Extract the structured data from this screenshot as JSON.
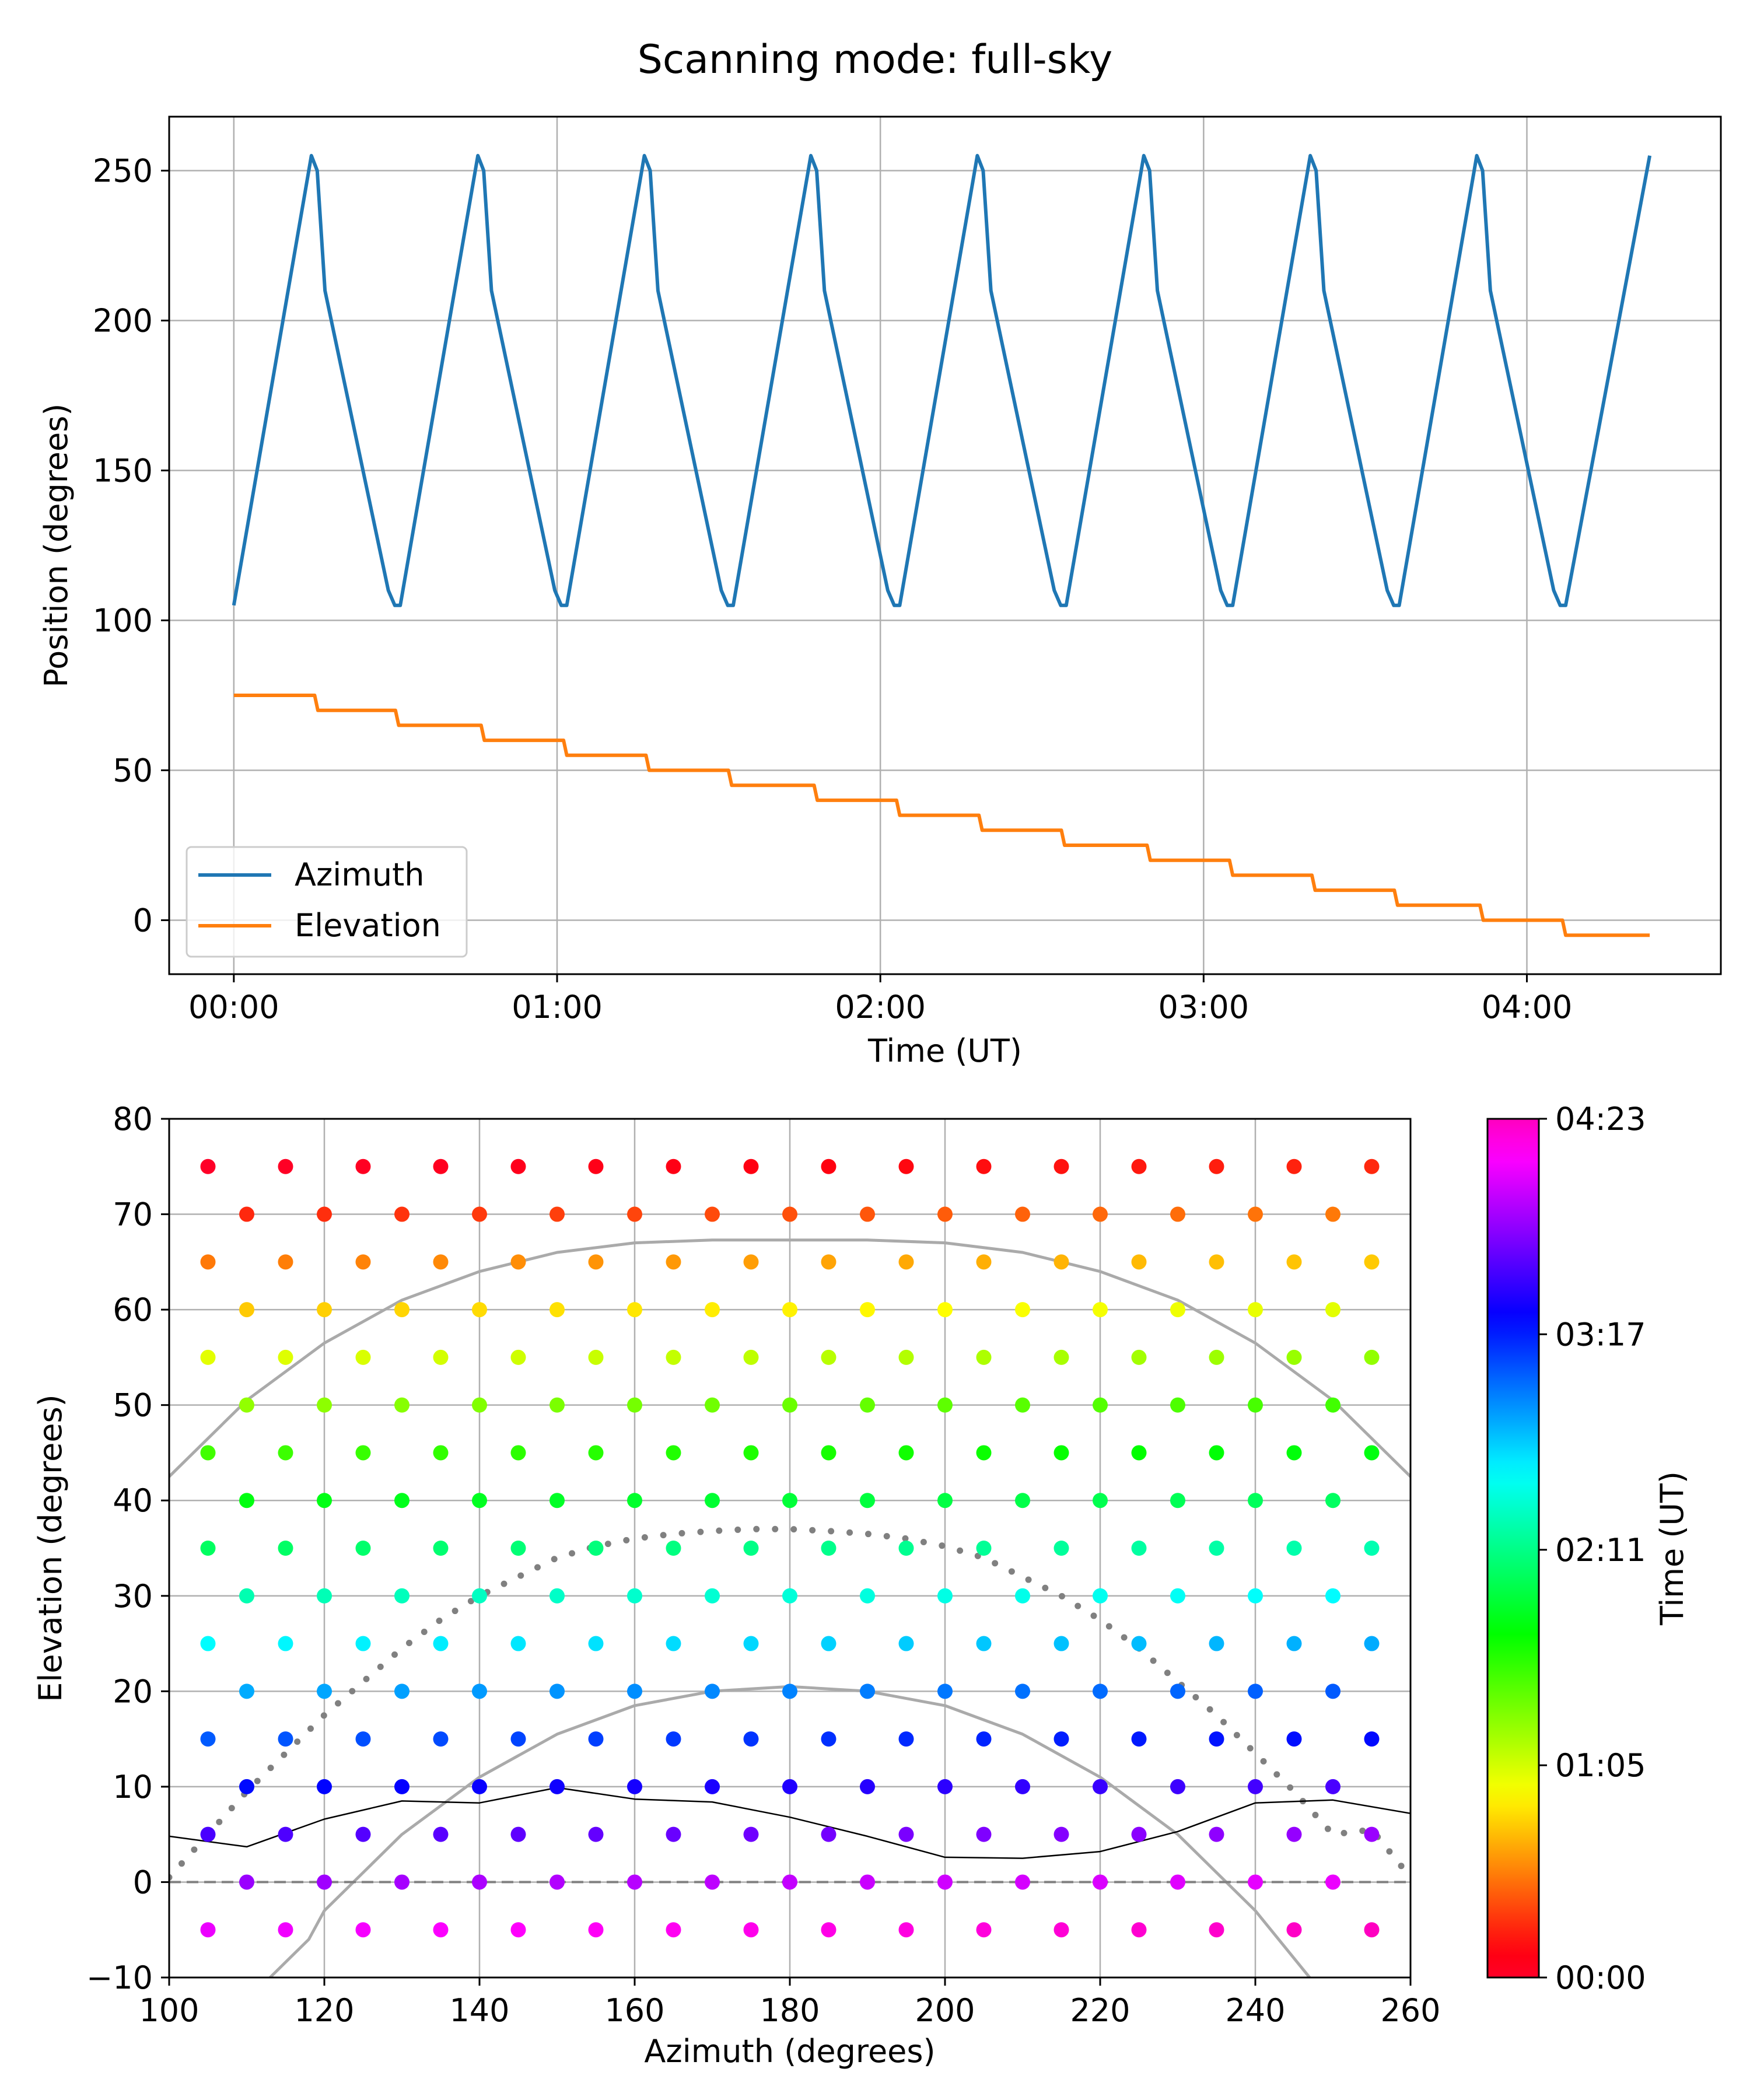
{
  "figure": {
    "title": "Scanning mode: full-sky"
  },
  "chart_data": [
    {
      "type": "line",
      "title": "Scanning mode: full-sky",
      "xlabel": "Time (UT)",
      "ylabel": "Position (degrees)",
      "xlim": [
        -0.2,
        4.6
      ],
      "ylim": [
        -18,
        268
      ],
      "xticks": [
        0,
        1,
        2,
        3,
        4
      ],
      "xtick_labels": [
        "00:00",
        "01:00",
        "02:00",
        "03:00",
        "04:00"
      ],
      "yticks": [
        0,
        50,
        100,
        150,
        200,
        250
      ],
      "ytick_labels": [
        "0",
        "50",
        "100",
        "150",
        "200",
        "250"
      ],
      "grid": true,
      "legend_position": "lower-left",
      "series": [
        {
          "name": "Azimuth",
          "color": "#1f77b4",
          "x": [
            0.0,
            0.24,
            0.258,
            0.282,
            0.478,
            0.498,
            0.515,
            0.755,
            0.773,
            0.797,
            0.993,
            1.013,
            1.03,
            1.27,
            1.288,
            1.312,
            1.508,
            1.528,
            1.545,
            1.785,
            1.803,
            1.827,
            2.023,
            2.043,
            2.06,
            2.3,
            2.318,
            2.342,
            2.538,
            2.558,
            2.575,
            2.815,
            2.833,
            2.857,
            3.053,
            3.073,
            3.09,
            3.33,
            3.348,
            3.372,
            3.568,
            3.588,
            3.605,
            3.845,
            3.863,
            3.887,
            4.083,
            4.103,
            4.12,
            4.38
          ],
          "y": [
            105,
            255,
            250,
            210,
            110,
            105,
            105,
            255,
            250,
            210,
            110,
            105,
            105,
            255,
            250,
            210,
            110,
            105,
            105,
            255,
            250,
            210,
            110,
            105,
            105,
            255,
            250,
            210,
            110,
            105,
            105,
            255,
            250,
            210,
            110,
            105,
            105,
            255,
            250,
            210,
            110,
            105,
            105,
            255,
            250,
            210,
            110,
            105,
            105,
            255
          ]
        },
        {
          "name": "Elevation",
          "color": "#ff7f0e",
          "x": [
            0.0,
            0.25,
            0.26,
            0.5,
            0.51,
            0.765,
            0.775,
            1.02,
            1.03,
            1.275,
            1.285,
            1.53,
            1.54,
            1.795,
            1.805,
            2.05,
            2.06,
            2.305,
            2.315,
            2.56,
            2.57,
            2.825,
            2.835,
            3.08,
            3.09,
            3.335,
            3.345,
            3.59,
            3.6,
            3.855,
            3.865,
            4.11,
            4.12,
            4.38
          ],
          "y": [
            75,
            75,
            70,
            70,
            65,
            65,
            60,
            60,
            55,
            55,
            50,
            50,
            45,
            45,
            40,
            40,
            35,
            35,
            30,
            30,
            25,
            25,
            20,
            20,
            15,
            15,
            10,
            10,
            5,
            5,
            0,
            0,
            -5,
            -5
          ]
        }
      ]
    },
    {
      "type": "scatter",
      "xlabel": "Azimuth (degrees)",
      "ylabel": "Elevation (degrees)",
      "xlim": [
        100,
        260
      ],
      "ylim": [
        -10,
        80
      ],
      "xticks": [
        100,
        120,
        140,
        160,
        180,
        200,
        220,
        240,
        260
      ],
      "xtick_labels": [
        "100",
        "120",
        "140",
        "160",
        "180",
        "200",
        "220",
        "240",
        "260"
      ],
      "yticks": [
        -10,
        0,
        10,
        20,
        30,
        40,
        50,
        60,
        70,
        80
      ],
      "ytick_labels": [
        "−10",
        "0",
        "10",
        "20",
        "30",
        "40",
        "50",
        "60",
        "70",
        "80"
      ],
      "grid": true,
      "colorbar": {
        "label": "Time (UT)",
        "colormap": "gist_rainbow",
        "range": [
          0,
          4.383
        ],
        "ticks": [
          0,
          1.0833,
          2.1833,
          3.2833,
          4.3833
        ],
        "tick_labels": [
          "00:00",
          "01:05",
          "02:11",
          "03:17",
          "04:23"
        ]
      },
      "points_rule": "Rows at elevations 75, 70, ..., -5; odd rows (75,65,...,-5) at azimuth 105..255 step 10, even rows (70,60,...,0) at azimuth 110..250 step 10; color = time of observation",
      "rows": [
        {
          "el": 75,
          "az": [
            105,
            115,
            125,
            135,
            145,
            155,
            165,
            175,
            185,
            195,
            205,
            215,
            225,
            235,
            245,
            255
          ]
        },
        {
          "el": 70,
          "az": [
            110,
            120,
            130,
            140,
            150,
            160,
            170,
            180,
            190,
            200,
            210,
            220,
            230,
            240,
            250
          ]
        },
        {
          "el": 65,
          "az": [
            105,
            115,
            125,
            135,
            145,
            155,
            165,
            175,
            185,
            195,
            205,
            215,
            225,
            235,
            245,
            255
          ]
        },
        {
          "el": 60,
          "az": [
            110,
            120,
            130,
            140,
            150,
            160,
            170,
            180,
            190,
            200,
            210,
            220,
            230,
            240,
            250
          ]
        },
        {
          "el": 55,
          "az": [
            105,
            115,
            125,
            135,
            145,
            155,
            165,
            175,
            185,
            195,
            205,
            215,
            225,
            235,
            245,
            255
          ]
        },
        {
          "el": 50,
          "az": [
            110,
            120,
            130,
            140,
            150,
            160,
            170,
            180,
            190,
            200,
            210,
            220,
            230,
            240,
            250
          ]
        },
        {
          "el": 45,
          "az": [
            105,
            115,
            125,
            135,
            145,
            155,
            165,
            175,
            185,
            195,
            205,
            215,
            225,
            235,
            245,
            255
          ]
        },
        {
          "el": 40,
          "az": [
            110,
            120,
            130,
            140,
            150,
            160,
            170,
            180,
            190,
            200,
            210,
            220,
            230,
            240,
            250
          ]
        },
        {
          "el": 35,
          "az": [
            105,
            115,
            125,
            135,
            145,
            155,
            165,
            175,
            185,
            195,
            205,
            215,
            225,
            235,
            245,
            255
          ]
        },
        {
          "el": 30,
          "az": [
            110,
            120,
            130,
            140,
            150,
            160,
            170,
            180,
            190,
            200,
            210,
            220,
            230,
            240,
            250
          ]
        },
        {
          "el": 25,
          "az": [
            105,
            115,
            125,
            135,
            145,
            155,
            165,
            175,
            185,
            195,
            205,
            215,
            225,
            235,
            245,
            255
          ]
        },
        {
          "el": 20,
          "az": [
            110,
            120,
            130,
            140,
            150,
            160,
            170,
            180,
            190,
            200,
            210,
            220,
            230,
            240,
            250
          ]
        },
        {
          "el": 15,
          "az": [
            105,
            115,
            125,
            135,
            145,
            155,
            165,
            175,
            185,
            195,
            205,
            215,
            225,
            235,
            245,
            255
          ]
        },
        {
          "el": 10,
          "az": [
            110,
            120,
            130,
            140,
            150,
            160,
            170,
            180,
            190,
            200,
            210,
            220,
            230,
            240,
            250
          ]
        },
        {
          "el": 5,
          "az": [
            105,
            115,
            125,
            135,
            145,
            155,
            165,
            175,
            185,
            195,
            205,
            215,
            225,
            235,
            245,
            255
          ]
        },
        {
          "el": 0,
          "az": [
            110,
            120,
            130,
            140,
            150,
            160,
            170,
            180,
            190,
            200,
            210,
            220,
            230,
            240,
            250
          ]
        },
        {
          "el": -5,
          "az": [
            105,
            115,
            125,
            135,
            145,
            155,
            165,
            175,
            185,
            195,
            205,
            215,
            225,
            235,
            245,
            255
          ]
        }
      ],
      "row_time_start": [
        0.0,
        0.258,
        0.515,
        0.773,
        1.03,
        1.288,
        1.545,
        1.803,
        2.06,
        2.318,
        2.575,
        2.833,
        3.09,
        3.348,
        3.605,
        3.863,
        4.12
      ],
      "row_duration": 0.258,
      "curves": [
        {
          "style": "solid-gray-upper",
          "color": "#aaaaaa",
          "x": [
            100,
            110,
            120,
            130,
            140,
            150,
            160,
            170,
            180,
            190,
            200,
            210,
            220,
            230,
            240,
            250,
            260
          ],
          "y": [
            42.5,
            50.5,
            56.5,
            61.0,
            64.0,
            66.0,
            67.0,
            67.3,
            67.3,
            67.3,
            67.0,
            66.0,
            64.0,
            61.0,
            56.5,
            50.5,
            42.5
          ]
        },
        {
          "style": "solid-gray-lower",
          "color": "#aaaaaa",
          "x": [
            113,
            118,
            120,
            125,
            130,
            140,
            150,
            160,
            170,
            180,
            190,
            200,
            210,
            220,
            230,
            235,
            240,
            247
          ],
          "y": [
            -10,
            -6,
            -3,
            1,
            5,
            11,
            15.5,
            18.5,
            20,
            20.5,
            20,
            18.5,
            15.5,
            11,
            5,
            1,
            -3,
            -10
          ]
        },
        {
          "style": "dotted-gray",
          "color": "#808080",
          "x": [
            100,
            105,
            110,
            115,
            120,
            125,
            130,
            135,
            140,
            145,
            150,
            155,
            160,
            165,
            170,
            175,
            180,
            185,
            190,
            195,
            200,
            205,
            210,
            215,
            220,
            225,
            230,
            235,
            240,
            245,
            250,
            255,
            260
          ],
          "y": [
            0.5,
            5,
            9.5,
            13.5,
            17.5,
            21,
            24.5,
            27.5,
            30,
            32,
            34,
            35.2,
            36,
            36.5,
            36.8,
            37,
            37,
            36.8,
            36.5,
            36,
            35.2,
            34,
            32,
            30,
            27.5,
            24.5,
            21,
            17.5,
            13.5,
            9.5,
            5,
            5.5,
            0.5
          ]
        },
        {
          "style": "solid-black-horizon",
          "color": "#000000",
          "x": [
            100,
            110,
            120,
            130,
            140,
            150,
            160,
            170,
            180,
            190,
            200,
            210,
            220,
            230,
            240,
            250,
            260
          ],
          "y": [
            4.8,
            3.7,
            6.6,
            8.5,
            8.3,
            9.9,
            8.7,
            8.4,
            6.8,
            4.8,
            2.6,
            2.5,
            3.2,
            5.3,
            8.3,
            8.6,
            7.2
          ]
        },
        {
          "style": "dashed-horizon",
          "color": "#808080",
          "x": [
            100,
            260
          ],
          "y": [
            0,
            0
          ]
        }
      ]
    }
  ]
}
